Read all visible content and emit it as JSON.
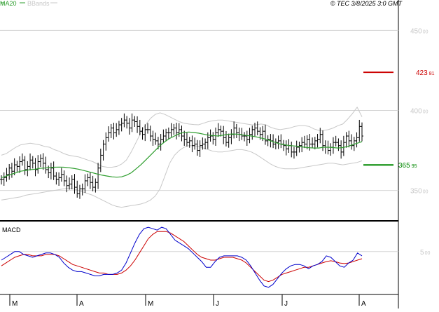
{
  "legend": {
    "ma_label": "MA20",
    "bbands_label": "BBands",
    "ma_color": "#2e9e2e",
    "bbands_color": "#c8c8c8"
  },
  "copyright": "© TEC 3/8/2025 3:0 GMT",
  "chart_data": [
    {
      "type": "line",
      "panel": "price",
      "y_ticks": [
        350,
        400,
        450
      ],
      "y_tick_labels": [
        "35000",
        "40000",
        "45000"
      ],
      "ylim": [
        331,
        469
      ],
      "x_ticks": [
        "M",
        "A",
        "M",
        "J",
        "J",
        "A"
      ],
      "grid": true,
      "price_levels": [
        {
          "value": 423.81,
          "label_main": "423",
          "label_dec": "81",
          "color": "#cc0000"
        },
        {
          "value": 365.95,
          "label_main": "365",
          "label_dec": "95",
          "color": "#008800"
        }
      ],
      "series": [
        {
          "name": "MA20",
          "color": "#2e9e2e",
          "values": [
            358,
            359,
            360,
            361,
            362,
            362.5,
            363,
            363.3,
            363.8,
            364,
            364.3,
            364.5,
            364.6,
            364.5,
            364.2,
            363.8,
            363.3,
            362.6,
            361.8,
            361,
            360.2,
            359.5,
            359,
            358.5,
            358.3,
            358.5,
            359.5,
            361,
            363.5,
            366,
            369,
            372,
            375,
            378,
            380.5,
            382.5,
            384,
            385.5,
            386.3,
            386.5,
            386.2,
            385.8,
            385.2,
            384.6,
            384.3,
            384,
            384.5,
            385,
            385.3,
            385.2,
            384.8,
            384.3,
            384,
            383.5,
            382.8,
            382,
            381,
            380,
            379,
            378.5,
            378,
            377.8,
            377.5,
            377,
            376.7,
            376.5,
            376.5,
            377,
            377,
            376.8,
            376.5,
            376.8,
            377.5,
            378.5,
            379.5,
            380.5
          ]
        },
        {
          "name": "BBands upper",
          "color": "#c8c8c8",
          "values": [
            372,
            373,
            375,
            377,
            378.5,
            379,
            379.5,
            379,
            378.5,
            377.5,
            377,
            375.5,
            374.5,
            373,
            372,
            371.5,
            371,
            370,
            369,
            368,
            366.5,
            365,
            364.5,
            364.5,
            365,
            366.5,
            369,
            374,
            380,
            386,
            391,
            395,
            397.5,
            398.5,
            397.5,
            396,
            394.5,
            393,
            392,
            391.5,
            391.2,
            391,
            392,
            393,
            393.5,
            394,
            394,
            393.5,
            393,
            392.5,
            392,
            391.5,
            391,
            391,
            391.5,
            391,
            389.5,
            388.5,
            388,
            388.5,
            389,
            390,
            390.5,
            390.5,
            390,
            388.5,
            387.5,
            387.5,
            388,
            389,
            390.5,
            391.5,
            394.5,
            398,
            402,
            396
          ]
        },
        {
          "name": "BBands lower",
          "color": "#c8c8c8",
          "values": [
            344,
            344.5,
            345,
            345.5,
            346,
            347,
            347.5,
            348,
            348.5,
            349,
            349.5,
            350,
            350.5,
            351,
            351.5,
            351,
            350,
            349,
            348,
            347,
            345.5,
            344,
            342.5,
            341,
            340,
            339.5,
            340,
            340.5,
            341,
            341.5,
            342.5,
            344,
            346.5,
            351,
            359,
            367,
            372,
            375,
            377,
            378,
            378,
            377.5,
            376.5,
            375.5,
            374.5,
            374,
            374,
            374.5,
            375,
            375.5,
            375.5,
            375,
            374,
            372.5,
            370.5,
            368.5,
            366.5,
            365,
            364,
            363.5,
            363.5,
            363.5,
            364,
            364.5,
            365,
            365.5,
            366,
            366.5,
            367,
            367,
            366.5,
            366,
            366.5,
            367,
            367.5,
            368.5
          ]
        },
        {
          "name": "Price",
          "color": "#000000",
          "style": "bar",
          "values": [
            357,
            358,
            360,
            364,
            362,
            366,
            365,
            368,
            369,
            363,
            365,
            369,
            367,
            363,
            368,
            370,
            367,
            363,
            361,
            364,
            359,
            357,
            358,
            360,
            356,
            353,
            354,
            357,
            352,
            348,
            351,
            351,
            356,
            358,
            355,
            352,
            355,
            364,
            372,
            379,
            383,
            386,
            389,
            386,
            388,
            391,
            392,
            394,
            392,
            389,
            394,
            393,
            390,
            387,
            385,
            388,
            388,
            384,
            382,
            381,
            379,
            382,
            384,
            386,
            386,
            388,
            389,
            386,
            388,
            384,
            382,
            380,
            381,
            378,
            379,
            375,
            378,
            379,
            380,
            383,
            384,
            382,
            386,
            388,
            387,
            383,
            380,
            383,
            385,
            389,
            386,
            385,
            384,
            384,
            382,
            385,
            388,
            389,
            387,
            385,
            387,
            381,
            382,
            381,
            379,
            380,
            381,
            379,
            378,
            376,
            378,
            374,
            374,
            377,
            378,
            380,
            379,
            382,
            379,
            379,
            381,
            382,
            385,
            378,
            377,
            375,
            377,
            380,
            380,
            378,
            374,
            380,
            384,
            381,
            378,
            381,
            383,
            390,
            384
          ]
        }
      ]
    },
    {
      "type": "line",
      "panel": "MACD",
      "title": "MACD",
      "y_ticks": [
        5
      ],
      "y_tick_labels": [
        "500"
      ],
      "ylim": [
        -10,
        15
      ],
      "grid": true,
      "series": [
        {
          "name": "MACD",
          "color": "#0000cc",
          "values": [
            2,
            3,
            4,
            5,
            5,
            4,
            3.5,
            3,
            3.5,
            4,
            4.5,
            4.5,
            4,
            3,
            1,
            -0.5,
            -1.5,
            -2,
            -2,
            -2.5,
            -3,
            -3.5,
            -3.5,
            -3,
            -3,
            -3,
            -2.5,
            -1.5,
            1,
            4.5,
            8,
            11,
            13,
            13.5,
            13,
            12.5,
            13.5,
            13,
            11,
            9,
            8,
            7,
            6,
            4.5,
            3,
            1.5,
            -0.5,
            -0.5,
            1.5,
            3,
            3.5,
            3.5,
            3.5,
            3.5,
            3,
            2,
            0,
            -2.5,
            -5,
            -7,
            -7.5,
            -6.5,
            -4.5,
            -2.5,
            -1,
            0,
            0.5,
            0.5,
            0,
            -1,
            0,
            0.5,
            1.5,
            3.5,
            3,
            1.5,
            0,
            -0.5,
            1,
            2,
            4.5,
            3.5
          ]
        },
        {
          "name": "Signal",
          "color": "#cc0000",
          "values": [
            0,
            1,
            2,
            3,
            3.5,
            4,
            4,
            3.5,
            3.5,
            3.5,
            4,
            4,
            4,
            3.5,
            2.5,
            1.5,
            0.5,
            0,
            -0.5,
            -1,
            -1.5,
            -2,
            -2.5,
            -2.5,
            -3,
            -3,
            -3,
            -2.5,
            -1.5,
            0,
            2,
            4.5,
            7,
            9.5,
            11,
            12,
            12,
            12,
            11.5,
            10.5,
            9.5,
            8.5,
            7,
            5.5,
            4,
            3,
            2.5,
            2,
            2,
            2.5,
            3,
            3,
            3,
            2.5,
            2,
            1,
            -0.5,
            -2,
            -3.5,
            -5,
            -5.5,
            -5,
            -4,
            -3,
            -2.5,
            -2,
            -1.5,
            -1,
            -0.5,
            -0.5,
            0,
            0.5,
            1,
            1.5,
            1.8,
            1.5,
            1,
            0.8,
            1,
            1.5,
            2,
            2.5
          ]
        }
      ]
    }
  ]
}
